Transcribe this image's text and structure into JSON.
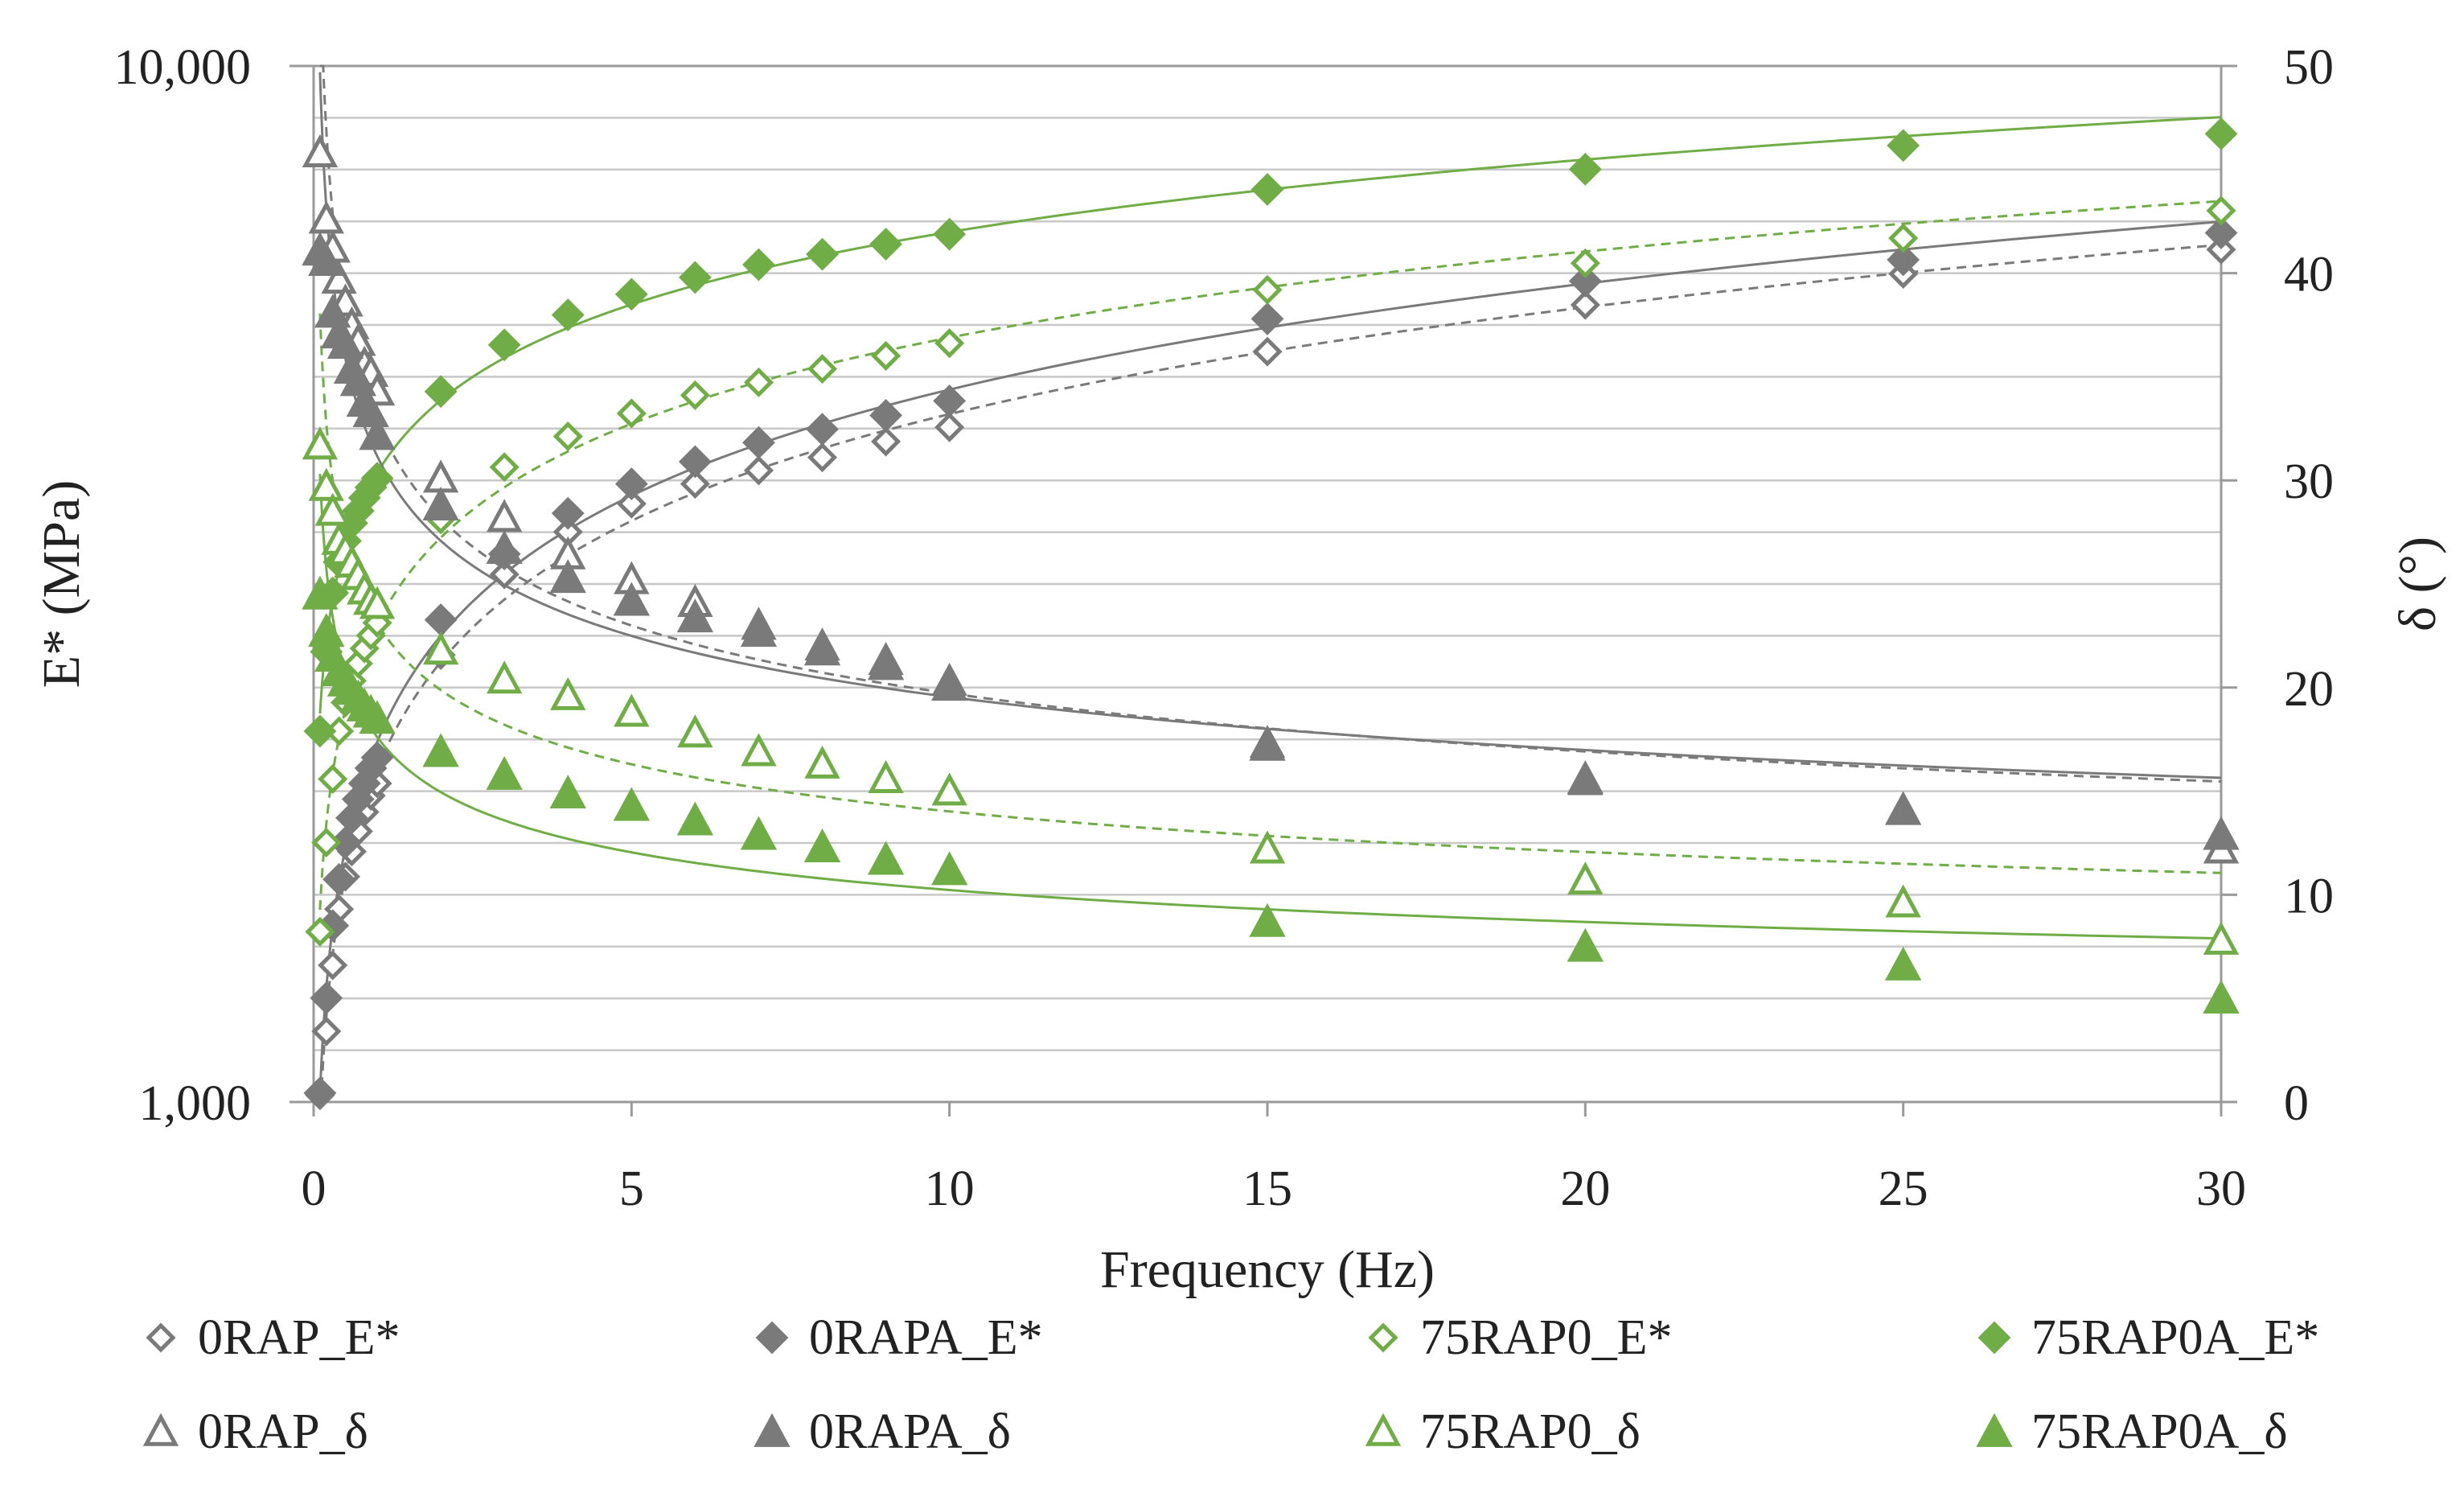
{
  "chart_data": {
    "type": "scatter",
    "title": "",
    "xlabel": "Frequency (Hz)",
    "ylabel": "E* (MPa)",
    "y2label": "δ (°)",
    "xlim": [
      0,
      30
    ],
    "ylim": [
      1000,
      10000
    ],
    "yscale": "log",
    "y2lim": [
      0,
      50
    ],
    "x_ticks": [
      0,
      5,
      10,
      15,
      20,
      25,
      30
    ],
    "x_tick_labels": [
      "0",
      "5",
      "10",
      "15",
      "20",
      "25",
      "30"
    ],
    "y_ticks": [
      1000,
      10000
    ],
    "y_tick_labels": [
      "1,000",
      "10,000"
    ],
    "y2_ticks": [
      0,
      10,
      20,
      30,
      40,
      50
    ],
    "y2_tick_labels": [
      "0",
      "10",
      "20",
      "30",
      "40",
      "50"
    ],
    "grid": true,
    "legend_position": "bottom",
    "colors": {
      "grey": "#7a7a7a",
      "green": "#70ad47"
    },
    "x": [
      0.1,
      0.2,
      0.3,
      0.4,
      0.5,
      0.6,
      0.7,
      0.8,
      0.9,
      1,
      2,
      3,
      4,
      5,
      6,
      7,
      8,
      9,
      10,
      15,
      20,
      25,
      30
    ],
    "series": [
      {
        "name": "0RAP_E*",
        "axis": "left",
        "marker": "diamond-open",
        "color": "#7a7a7a",
        "trend": "dashed",
        "values": [
          1015,
          1170,
          1355,
          1535,
          1650,
          1745,
          1825,
          1905,
          1975,
          2030,
          2700,
          3230,
          3550,
          3780,
          3950,
          4070,
          4190,
          4340,
          4480,
          5300,
          5880,
          6300,
          6650
        ]
      },
      {
        "name": "0RAPA_E*",
        "axis": "left",
        "marker": "diamond",
        "color": "#7a7a7a",
        "trend": "solid",
        "values": [
          1020,
          1260,
          1480,
          1640,
          1780,
          1880,
          1960,
          2030,
          2100,
          2150,
          2920,
          3380,
          3700,
          3950,
          4150,
          4330,
          4460,
          4600,
          4750,
          5700,
          6200,
          6500,
          6900
        ]
      },
      {
        "name": "75RAP0_E*",
        "axis": "left",
        "marker": "diamond-open",
        "color": "#70ad47",
        "trend": "dashed",
        "values": [
          1460,
          1780,
          2050,
          2280,
          2430,
          2550,
          2650,
          2740,
          2820,
          2900,
          3650,
          4100,
          4390,
          4620,
          4810,
          4950,
          5100,
          5250,
          5400,
          6080,
          6450,
          6820,
          7250
        ]
      },
      {
        "name": "75RAP0A_E*",
        "axis": "left",
        "marker": "diamond",
        "color": "#70ad47",
        "trend": "solid",
        "values": [
          2280,
          2720,
          3100,
          3320,
          3480,
          3620,
          3720,
          3830,
          3920,
          4000,
          4850,
          5380,
          5750,
          6020,
          6250,
          6430,
          6580,
          6730,
          6880,
          7600,
          7950,
          8380,
          8600
        ]
      },
      {
        "name": "0RAP_δ",
        "axis": "right",
        "marker": "triangle-open",
        "color": "#7a7a7a",
        "trend": "dashed",
        "values": [
          45.8,
          42.6,
          41.2,
          39.7,
          38.6,
          37.5,
          36.7,
          35.6,
          35.2,
          34.3,
          30.1,
          28.2,
          26.4,
          25.2,
          24.1,
          23.0,
          22.0,
          21.3,
          20.3,
          17.3,
          15.5,
          14.1,
          12.2
        ]
      },
      {
        "name": "0RAPA_δ",
        "axis": "right",
        "marker": "triangle",
        "color": "#7a7a7a",
        "trend": "solid",
        "values": [
          41.1,
          40.6,
          38.1,
          37.1,
          36.6,
          35.4,
          34.8,
          33.8,
          33.3,
          32.2,
          28.8,
          26.7,
          25.3,
          24.2,
          23.4,
          22.7,
          21.8,
          21.1,
          20.1,
          17.2,
          15.6,
          14.1,
          12.9
        ]
      },
      {
        "name": "75RAP0_δ",
        "axis": "right",
        "marker": "triangle-open",
        "color": "#70ad47",
        "trend": "dashed",
        "values": [
          31.7,
          29.7,
          28.5,
          27.1,
          26.6,
          26.0,
          25.4,
          24.7,
          24.2,
          24.0,
          21.8,
          20.4,
          19.6,
          18.8,
          17.8,
          16.9,
          16.3,
          15.6,
          15.0,
          12.2,
          10.7,
          9.6,
          7.8
        ]
      },
      {
        "name": "75RAP0A_δ",
        "axis": "right",
        "marker": "triangle",
        "color": "#70ad47",
        "trend": "solid",
        "values": [
          24.5,
          22.7,
          21.5,
          20.8,
          20.3,
          19.9,
          19.5,
          19.1,
          18.8,
          18.5,
          16.9,
          15.8,
          14.9,
          14.3,
          13.6,
          12.9,
          12.3,
          11.7,
          11.2,
          8.7,
          7.5,
          6.6,
          5.0
        ]
      }
    ]
  }
}
